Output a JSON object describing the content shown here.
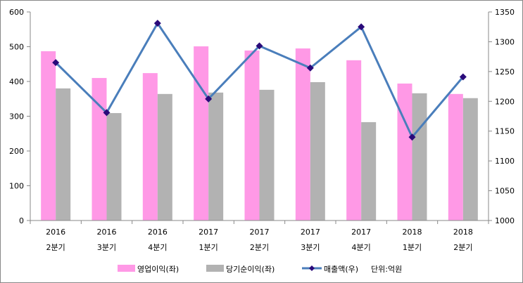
{
  "chart_data": {
    "type": "bar+line",
    "categories": [
      {
        "year": "2016",
        "quarter": "2분기"
      },
      {
        "year": "2016",
        "quarter": "3분기"
      },
      {
        "year": "2016",
        "quarter": "4분기"
      },
      {
        "year": "2017",
        "quarter": "1분기"
      },
      {
        "year": "2017",
        "quarter": "2분기"
      },
      {
        "year": "2017",
        "quarter": "3분기"
      },
      {
        "year": "2017",
        "quarter": "4분기"
      },
      {
        "year": "2018",
        "quarter": "1분기"
      },
      {
        "year": "2018",
        "quarter": "2분기"
      }
    ],
    "series": [
      {
        "name": "영업이익(좌)",
        "type": "bar",
        "axis": "left",
        "color": "#ff99e6",
        "values": [
          487,
          410,
          424,
          501,
          489,
          495,
          461,
          394,
          364
        ]
      },
      {
        "name": "당기순이익(좌)",
        "type": "bar",
        "axis": "left",
        "color": "#b2b2b2",
        "values": [
          380,
          309,
          364,
          368,
          376,
          398,
          283,
          366,
          352
        ]
      },
      {
        "name": "매출액(우)",
        "type": "line",
        "axis": "right",
        "color": "#4a7ebb",
        "marker_color": "#2a0a7a",
        "values": [
          1265,
          1181,
          1331,
          1204,
          1293,
          1256,
          1325,
          1140,
          1241
        ]
      }
    ],
    "left_axis": {
      "min": 0,
      "max": 600,
      "step": 100,
      "ticks": [
        "0",
        "100",
        "200",
        "300",
        "400",
        "500",
        "600"
      ]
    },
    "right_axis": {
      "min": 1000,
      "max": 1350,
      "step": 50,
      "ticks": [
        "1000",
        "1050",
        "1100",
        "1150",
        "1200",
        "1250",
        "1300",
        "1350"
      ]
    },
    "grid": false,
    "legend_position": "bottom",
    "unit_note": "단위:억원"
  }
}
